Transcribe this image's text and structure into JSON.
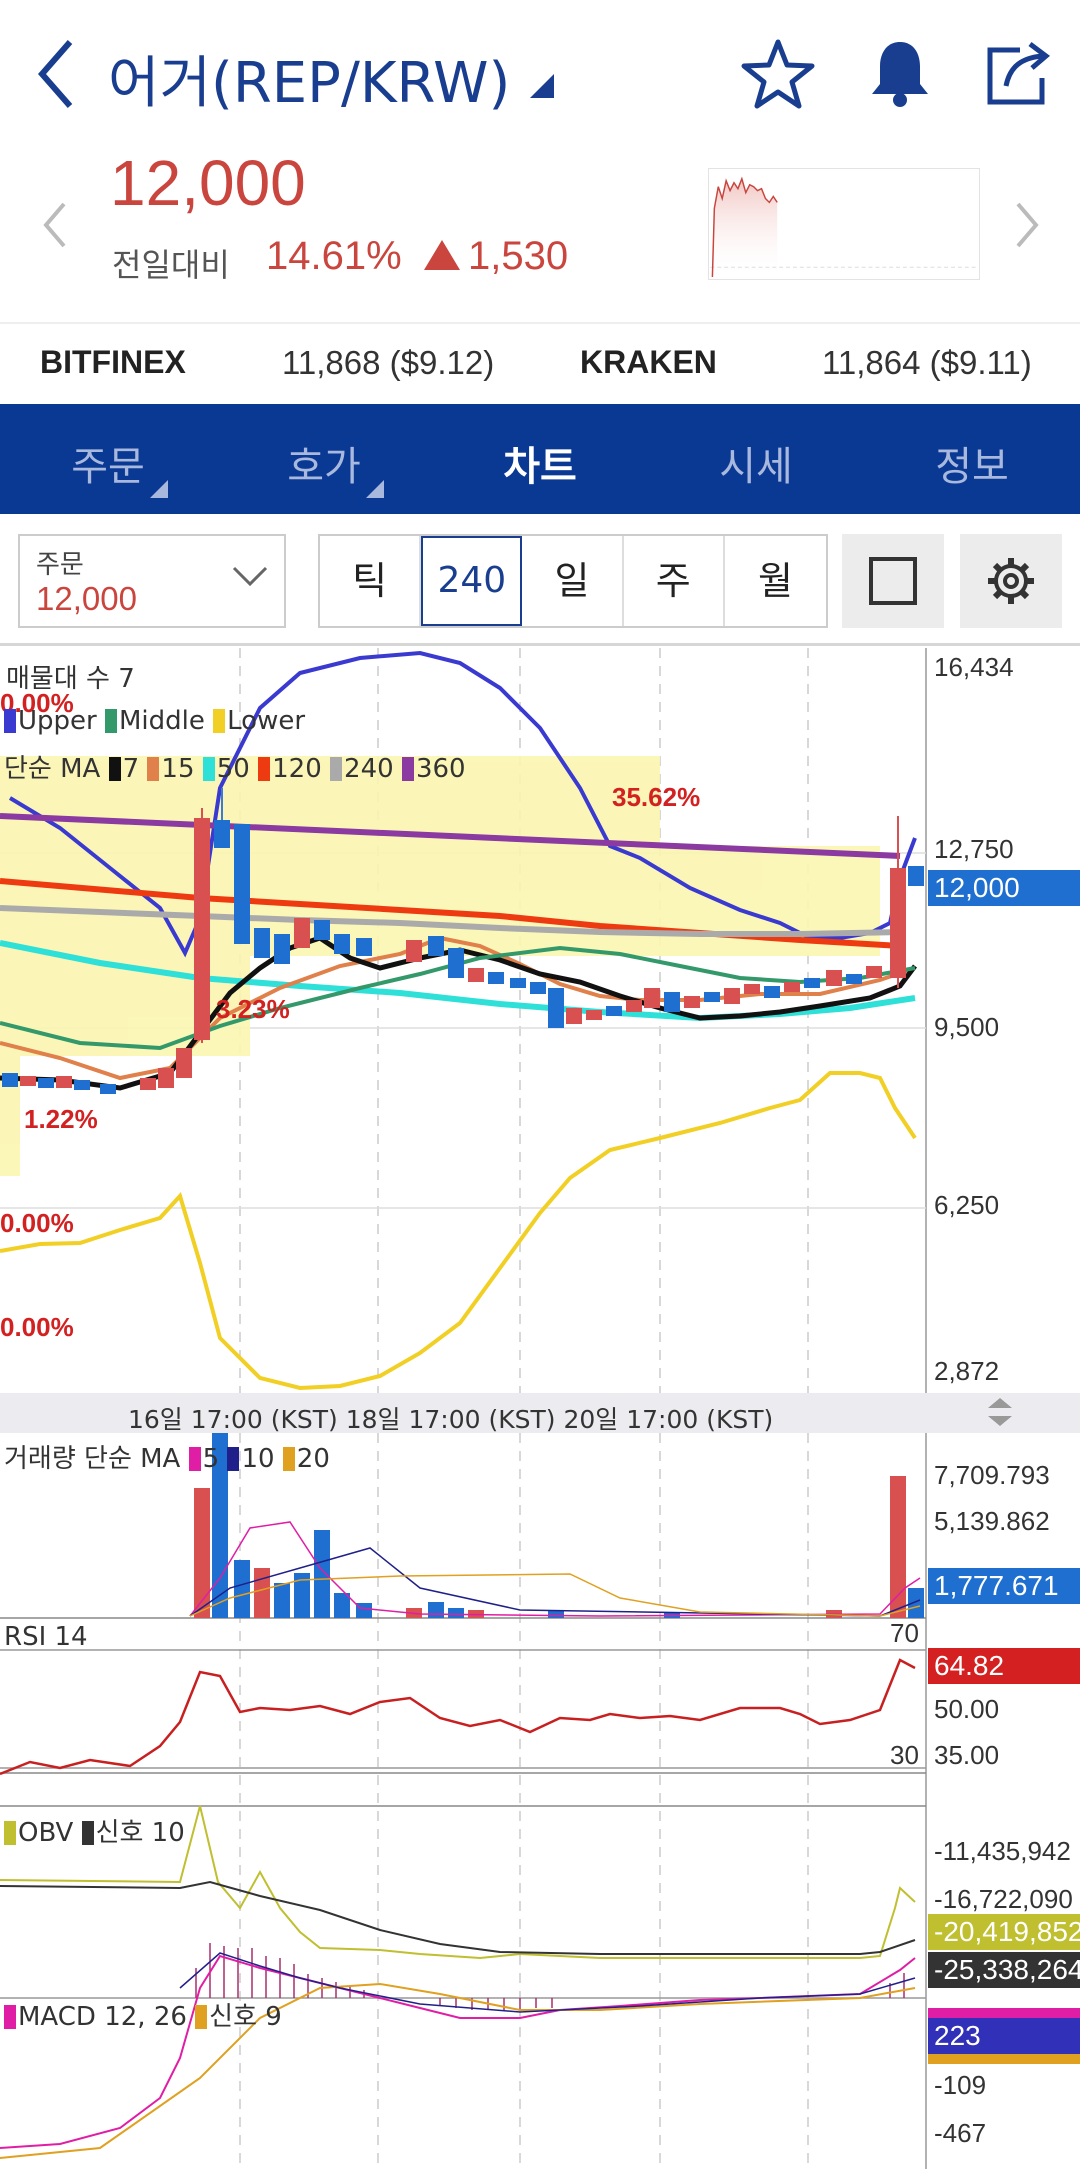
{
  "header": {
    "title": "어거(REP/KRW)",
    "icons": [
      "back-icon",
      "dropdown-triangle-icon",
      "star-icon",
      "bell-icon",
      "share-icon"
    ]
  },
  "price": {
    "current": "12,000",
    "compare_label": "전일대비",
    "change_pct": "14.61%",
    "change_abs": "1,530",
    "color": "#c9453d"
  },
  "exchanges": [
    {
      "name": "BITFINEX",
      "value": "11,868 ($9.12)"
    },
    {
      "name": "KRAKEN",
      "value": "11,864 ($9.11)"
    }
  ],
  "tabs": [
    {
      "label": "주문",
      "active": false
    },
    {
      "label": "호가",
      "active": false
    },
    {
      "label": "차트",
      "active": true
    },
    {
      "label": "시세",
      "active": false
    },
    {
      "label": "정보",
      "active": false
    }
  ],
  "controls": {
    "order_label": "주문",
    "order_value": "12,000",
    "periods": [
      "틱",
      "240분",
      "일",
      "주",
      "월"
    ],
    "active_period": "240분"
  },
  "main_chart": {
    "legend_volume_profile": "매물대 수 7",
    "bb_upper": "Upper",
    "bb_middle": "Middle",
    "bb_lower": "Lower",
    "ma_prefix": "단순 MA",
    "ma_periods": [
      "7",
      "15",
      "50",
      "120",
      "240",
      "360"
    ],
    "ma_colors": [
      "#111111",
      "#e0804a",
      "#2ee0d8",
      "#ee3a10",
      "#aaaaaa",
      "#8a3aa0"
    ],
    "y_ticks": [
      "16,434",
      "12,750",
      "9,500",
      "6,250",
      "2,872"
    ],
    "current_tag": "12,000",
    "pct_labels": [
      "0.00%",
      "35.62%",
      "3.23%",
      "1.22%",
      "0.00%",
      "0.00%"
    ],
    "time_axis": "16일 17:00 (KST) 18일 17:00 (KST) 20일 17:00 (KST)"
  },
  "volume_chart": {
    "label": "거래량 단순 MA",
    "ma": [
      "5",
      "10",
      "20"
    ],
    "y_ticks": [
      "7,709.793",
      "5,139.862"
    ],
    "current_tag": "1,777.671"
  },
  "rsi_chart": {
    "label": "RSI 14",
    "upper": "70",
    "lower": "30",
    "current_tag": "64.82",
    "y_ticks": [
      "50.00",
      "35.00"
    ]
  },
  "obv_chart": {
    "label": "OBV",
    "signal": "신호 10",
    "y_ticks": [
      "-11,435,942",
      "-16,722,090"
    ],
    "tag_obv": "-20,419,852",
    "tag_signal": "-25,338,264"
  },
  "macd_chart": {
    "label": "MACD 12, 26",
    "signal": "신호 9",
    "tag_macd": "223",
    "y_ticks": [
      "-109",
      "-467"
    ]
  }
}
